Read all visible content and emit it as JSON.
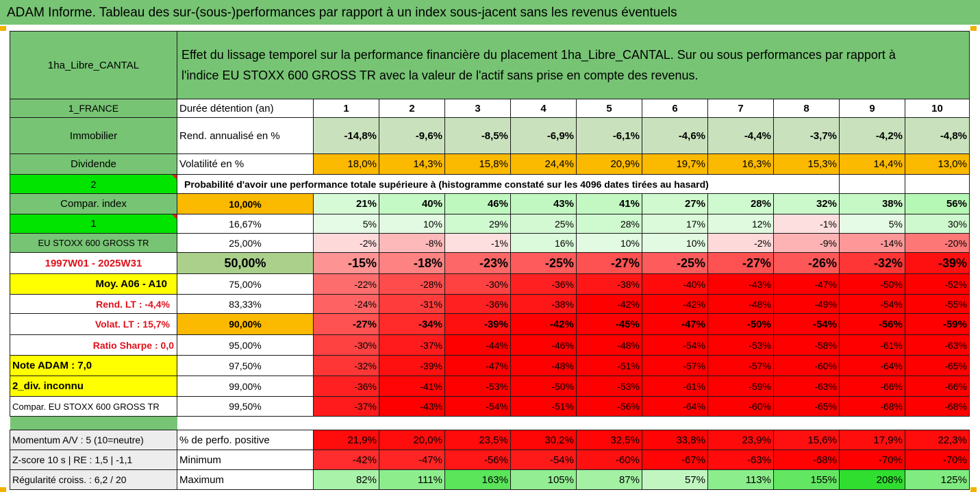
{
  "title": "ADAM Informe. Tableau des sur-(sous-)performances par rapport à un index sous-jacent sans les revenus éventuels",
  "asset_name": "1ha_Libre_CANTAL",
  "description_line1": "Effet du lissage temporel sur la performance financière du placement 1ha_Libre_CANTAL. Sur ou sous performances par rapport à",
  "description_line2": "l'indice EU STOXX 600 GROSS TR avec la valeur de l'actif sans prise en compte des revenus.",
  "holding": {
    "label_left": "1_FRANCE",
    "label": "Durée détention (an)",
    "years": [
      "1",
      "2",
      "3",
      "4",
      "5",
      "6",
      "7",
      "8",
      "9",
      "10"
    ]
  },
  "return_row": {
    "label_left": "Immobilier",
    "label": "Rend. annualisé en %",
    "values": [
      "-14,8%",
      "-9,6%",
      "-8,5%",
      "-6,9%",
      "-6,1%",
      "-4,6%",
      "-4,4%",
      "-3,7%",
      "-4,2%",
      "-4,8%"
    ]
  },
  "volatility_row": {
    "label_left": "Dividende",
    "label": "Volatilité en %",
    "values": [
      "18,0%",
      "14,3%",
      "15,8%",
      "24,4%",
      "20,9%",
      "19,7%",
      "16,3%",
      "15,3%",
      "14,4%",
      "13,0%"
    ]
  },
  "probability_header": {
    "label_left": "2",
    "text": "Probabilité d'avoir une performance totale supérieure à (histogramme constaté sur les 4096 dates tirées au hasard)"
  },
  "quantile_rows": [
    {
      "left": "Compar. index",
      "pct": "10,00%",
      "values": [
        "21%",
        "40%",
        "46%",
        "43%",
        "41%",
        "27%",
        "28%",
        "32%",
        "38%",
        "56%"
      ]
    },
    {
      "left": "1",
      "pct": "16,67%",
      "values": [
        "5%",
        "10%",
        "29%",
        "25%",
        "28%",
        "17%",
        "12%",
        "-1%",
        "5%",
        "30%"
      ]
    },
    {
      "left": "EU STOXX 600 GROSS TR",
      "pct": "25,00%",
      "values": [
        "-2%",
        "-8%",
        "-1%",
        "16%",
        "10%",
        "10%",
        "-2%",
        "-9%",
        "-14%",
        "-20%"
      ]
    },
    {
      "left": "1997W01 - 2025W31",
      "pct": "50,00%",
      "values": [
        "-15%",
        "-18%",
        "-23%",
        "-25%",
        "-27%",
        "-25%",
        "-27%",
        "-26%",
        "-32%",
        "-39%"
      ]
    },
    {
      "left": "Moy. A06 - A10",
      "pct": "75,00%",
      "values": [
        "-22%",
        "-28%",
        "-30%",
        "-36%",
        "-38%",
        "-40%",
        "-43%",
        "-47%",
        "-50%",
        "-52%"
      ]
    },
    {
      "left": "Rend. LT :   -4,4%",
      "pct": "83,33%",
      "values": [
        "-24%",
        "-31%",
        "-36%",
        "-38%",
        "-42%",
        "-42%",
        "-48%",
        "-49%",
        "-54%",
        "-55%"
      ]
    },
    {
      "left": "Volat. LT :   15,7%",
      "pct": "90,00%",
      "values": [
        "-27%",
        "-34%",
        "-39%",
        "-42%",
        "-45%",
        "-47%",
        "-50%",
        "-54%",
        "-56%",
        "-59%"
      ]
    },
    {
      "left": "Ratio Sharpe :    0,0",
      "pct": "95,00%",
      "values": [
        "-30%",
        "-37%",
        "-44%",
        "-46%",
        "-48%",
        "-54%",
        "-53%",
        "-58%",
        "-61%",
        "-63%"
      ]
    },
    {
      "left": "Note ADAM : 7,0",
      "pct": "97,50%",
      "values": [
        "-32%",
        "-39%",
        "-47%",
        "-48%",
        "-51%",
        "-57%",
        "-57%",
        "-60%",
        "-64%",
        "-65%"
      ]
    },
    {
      "left": "2_div. inconnu",
      "pct": "99,00%",
      "values": [
        "-36%",
        "-41%",
        "-53%",
        "-50%",
        "-53%",
        "-61%",
        "-59%",
        "-63%",
        "-66%",
        "-66%"
      ]
    },
    {
      "left": "Compar. EU STOXX 600 GROSS TR",
      "pct": "99,50%",
      "values": [
        "-37%",
        "-43%",
        "-54%",
        "-51%",
        "-56%",
        "-64%",
        "-60%",
        "-65%",
        "-68%",
        "-68%"
      ]
    }
  ],
  "stats_rows": [
    {
      "left": "Momentum A/V : 5 (10=neutre)",
      "label": "% de perfo. positive",
      "values": [
        "21,9%",
        "20,0%",
        "23,5%",
        "30,2%",
        "32,5%",
        "33,8%",
        "23,9%",
        "15,6%",
        "17,9%",
        "22,3%"
      ]
    },
    {
      "left": "Z-score 10 s  |  RE : 1,5  |  -1,1",
      "label": "Minimum",
      "values": [
        "-42%",
        "-47%",
        "-56%",
        "-54%",
        "-60%",
        "-67%",
        "-63%",
        "-68%",
        "-70%",
        "-70%"
      ]
    },
    {
      "left": "Régularité croiss. : 6,2 / 20",
      "label": "Maximum",
      "values": [
        "82%",
        "111%",
        "163%",
        "105%",
        "87%",
        "57%",
        "113%",
        "155%",
        "208%",
        "125%"
      ]
    }
  ],
  "colors": {
    "header_green": "#77c474",
    "orange": "#fbb900",
    "bright_green": "#00e400",
    "yellow": "#ffff00",
    "red_text": "#e0101a",
    "light_gray": "#ededed"
  }
}
